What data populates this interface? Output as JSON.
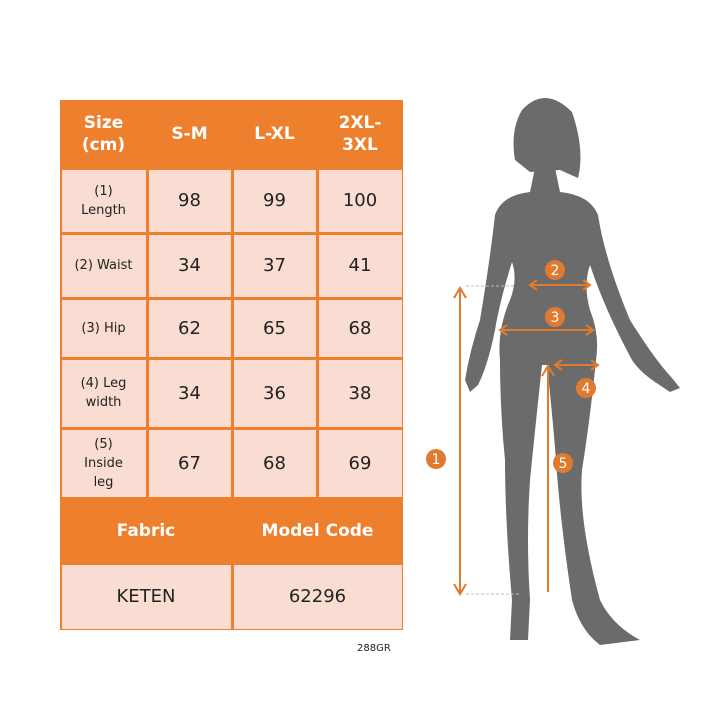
{
  "table": {
    "header": [
      "Size\n(cm)",
      "S-M",
      "L-XL",
      "2XL-\n3XL"
    ],
    "rows": [
      {
        "label": "(1)\nLength",
        "values": [
          "98",
          "99",
          "100"
        ]
      },
      {
        "label": "(2) Waist",
        "values": [
          "34",
          "37",
          "41"
        ]
      },
      {
        "label": "(3) Hip",
        "values": [
          "62",
          "65",
          "68"
        ]
      },
      {
        "label": "(4) Leg\nwidth",
        "values": [
          "34",
          "36",
          "38"
        ]
      },
      {
        "label": "(5)\nInside\nleg",
        "values": [
          "67",
          "68",
          "69"
        ]
      }
    ],
    "footer_header": [
      "Fabric",
      "Model Code"
    ],
    "footer_values": [
      "KETEN",
      "62296"
    ]
  },
  "figure": {
    "markers": [
      "1",
      "2",
      "3",
      "4",
      "5"
    ]
  },
  "product_code": "288GR",
  "colors": {
    "accent": "#ee7f2d",
    "cell": "#f9dcd2",
    "silhouette": "#6b6b6b"
  }
}
